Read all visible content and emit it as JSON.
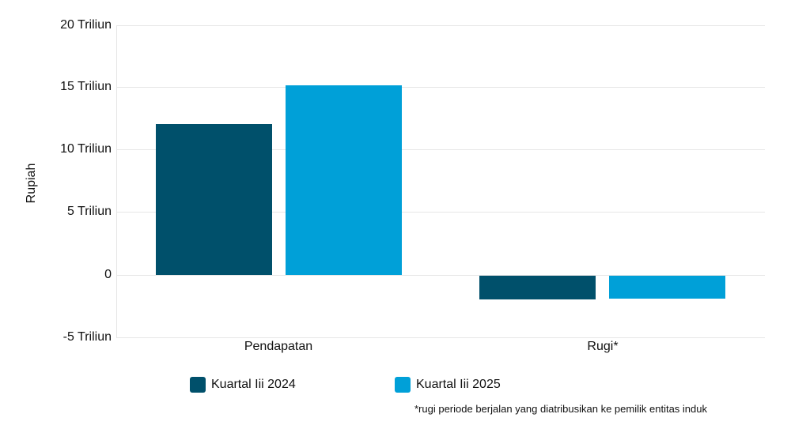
{
  "chart_data": {
    "type": "bar",
    "title": "",
    "xlabel": "",
    "ylabel": "Rupiah",
    "ylim": [
      -5,
      20
    ],
    "yticks": [
      "20 Triliun",
      "15 Triliun",
      "10 Triliun",
      "5 Triliun",
      "0",
      "-5 Triliun"
    ],
    "ytick_values": [
      20,
      15,
      10,
      5,
      0,
      -5
    ],
    "unit": "Triliun Rupiah",
    "grid": true,
    "legend_position": "bottom",
    "categories": [
      "Pendapatan",
      "Rugi*"
    ],
    "series": [
      {
        "name": "Kuartal Iii 2024",
        "color": "#00506b",
        "values": [
          12.1,
          -1.9
        ]
      },
      {
        "name": "Kuartal Iii 2025",
        "color": "#00a0d8",
        "values": [
          15.2,
          -1.85
        ]
      }
    ],
    "footnote": "*rugi periode berjalan yang diatribusikan ke pemilik entitas induk"
  }
}
